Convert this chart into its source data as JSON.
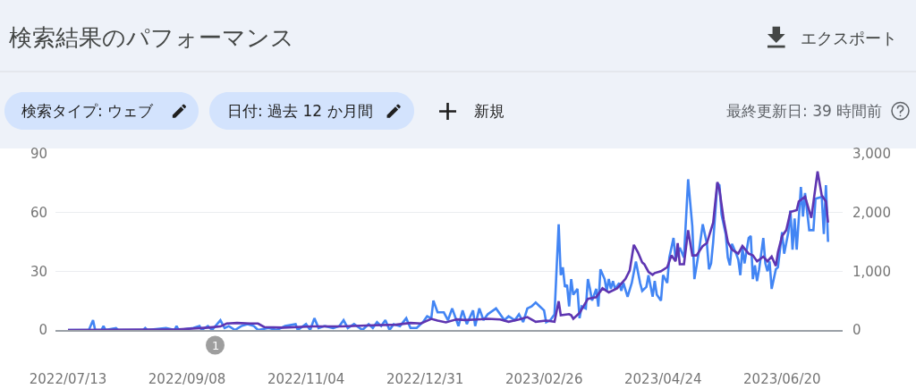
{
  "chart_data": {
    "type": "line",
    "title": "検索結果のパフォーマンス",
    "annotations": [
      "エクスポート",
      "検索タイプ: ウェブ",
      "日付: 過去 12 か月間",
      "新規",
      "最終更新日: 39 時間前",
      "1"
    ],
    "series": [
      {
        "color": "#5e35b1",
        "axis": "y2",
        "x": [
          "2022-07-13",
          "2022-09-04",
          "2022-09-18",
          "2022-09-24",
          "2022-09-27",
          "2022-10-02",
          "2022-10-08",
          "2022-10-12",
          "2022-10-15",
          "2022-10-24",
          "2022-11-07",
          "2022-11-21",
          "2022-12-06",
          "2022-12-17",
          "2022-12-24",
          "2022-12-29",
          "2023-01-03",
          "2023-01-06",
          "2023-01-10",
          "2023-01-15",
          "2023-01-19",
          "2023-01-25",
          "2023-01-30",
          "2023-02-05",
          "2023-02-09",
          "2023-02-14",
          "2023-02-18",
          "2023-02-22",
          "2023-02-27",
          "2023-03-03",
          "2023-03-05",
          "2023-03-06",
          "2023-03-10",
          "2023-03-11",
          "2023-03-12",
          "2023-03-15",
          "2023-03-19",
          "2023-03-23",
          "2023-03-26",
          "2023-03-29",
          "2023-04-02",
          "2023-04-06",
          "2023-04-08",
          "2023-04-10",
          "2023-04-12",
          "2023-04-14",
          "2023-04-15",
          "2023-04-17",
          "2023-04-19",
          "2023-04-20",
          "2023-04-23",
          "2023-04-26",
          "2023-04-28",
          "2023-04-30",
          "2023-05-01",
          "2023-05-02",
          "2023-05-04",
          "2023-05-06",
          "2023-05-08",
          "2023-05-10",
          "2023-05-13",
          "2023-05-15",
          "2023-05-18",
          "2023-05-20",
          "2023-05-21",
          "2023-05-23",
          "2023-05-25",
          "2023-05-27",
          "2023-05-30",
          "2023-06-01",
          "2023-06-04",
          "2023-06-06",
          "2023-06-08",
          "2023-06-11",
          "2023-06-13",
          "2023-06-15",
          "2023-06-17",
          "2023-06-18",
          "2023-06-20",
          "2023-06-22",
          "2023-06-24",
          "2023-06-27",
          "2023-06-28",
          "2023-07-01",
          "2023-07-04",
          "2023-07-07",
          "2023-07-09",
          "2023-07-11",
          "2023-07-12"
        ],
        "values": [
          0,
          10,
          40,
          60,
          110,
          120,
          110,
          110,
          50,
          40,
          60,
          60,
          80,
          90,
          120,
          110,
          190,
          160,
          130,
          180,
          170,
          180,
          190,
          180,
          140,
          180,
          220,
          140,
          160,
          140,
          490,
          250,
          270,
          250,
          190,
          290,
          530,
          560,
          710,
          640,
          710,
          870,
          1010,
          1450,
          1320,
          1150,
          1120,
          990,
          940,
          970,
          1000,
          1070,
          1270,
          1170,
          1480,
          1120,
          1120,
          1700,
          1270,
          1270,
          1430,
          1480,
          1830,
          2520,
          2390,
          1880,
          1500,
          1370,
          1300,
          1430,
          1300,
          1270,
          1170,
          1250,
          1170,
          1250,
          1090,
          1320,
          1600,
          1700,
          2010,
          2040,
          2190,
          2270,
          1910,
          2700,
          2290,
          2190,
          1830
        ]
      },
      {
        "color": "#4285f4",
        "x": [
          "2022-07-13",
          "2022-07-23",
          "2022-07-25",
          "2022-07-26",
          "2022-07-29",
          "2022-07-30",
          "2022-07-31",
          "2022-08-05",
          "2022-08-06",
          "2022-08-18",
          "2022-08-19",
          "2022-08-20",
          "2022-08-29",
          "2022-09-02",
          "2022-09-03",
          "2022-09-04",
          "2022-09-11",
          "2022-09-14",
          "2022-09-15",
          "2022-09-18",
          "2022-09-20",
          "2022-09-24",
          "2022-09-26",
          "2022-09-28",
          "2022-10-01",
          "2022-10-04",
          "2022-10-07",
          "2022-10-10",
          "2022-10-12",
          "2022-10-17",
          "2022-10-21",
          "2022-10-25",
          "2022-10-30",
          "2022-10-31",
          "2022-11-04",
          "2022-11-06",
          "2022-11-08",
          "2022-11-10",
          "2022-11-13",
          "2022-11-17",
          "2022-11-20",
          "2022-11-22",
          "2022-11-24",
          "2022-11-27",
          "2022-12-01",
          "2022-12-04",
          "2022-12-06",
          "2022-12-08",
          "2022-12-10",
          "2022-12-12",
          "2022-12-14",
          "2022-12-16",
          "2022-12-19",
          "2022-12-22",
          "2022-12-24",
          "2022-12-27",
          "2022-12-30",
          "2023-01-01",
          "2023-01-03",
          "2023-01-04",
          "2023-01-06",
          "2023-01-09",
          "2023-01-11",
          "2023-01-13",
          "2023-01-16",
          "2023-01-18",
          "2023-01-20",
          "2023-01-23",
          "2023-01-24",
          "2023-01-26",
          "2023-01-28",
          "2023-01-30",
          "2023-02-03",
          "2023-02-07",
          "2023-02-09",
          "2023-02-12",
          "2023-02-14",
          "2023-02-16",
          "2023-02-18",
          "2023-02-20",
          "2023-02-22",
          "2023-02-24",
          "2023-02-26",
          "2023-02-27",
          "2023-03-01",
          "2023-03-03",
          "2023-03-05",
          "2023-03-06",
          "2023-03-07",
          "2023-03-08",
          "2023-03-09",
          "2023-03-10",
          "2023-03-11",
          "2023-03-12",
          "2023-03-14",
          "2023-03-15",
          "2023-03-16",
          "2023-03-18",
          "2023-03-19",
          "2023-03-20",
          "2023-03-21",
          "2023-03-23",
          "2023-03-24",
          "2023-03-25",
          "2023-03-27",
          "2023-03-28",
          "2023-03-29",
          "2023-03-30",
          "2023-03-31",
          "2023-04-01",
          "2023-04-03",
          "2023-04-04",
          "2023-04-05",
          "2023-04-07",
          "2023-04-09",
          "2023-04-11",
          "2023-04-13",
          "2023-04-14",
          "2023-04-16",
          "2023-04-17",
          "2023-04-19",
          "2023-04-20",
          "2023-04-21",
          "2023-04-23",
          "2023-04-24",
          "2023-04-26",
          "2023-04-27",
          "2023-04-29",
          "2023-04-30",
          "2023-05-02",
          "2023-05-04",
          "2023-05-06",
          "2023-05-08",
          "2023-05-09",
          "2023-05-11",
          "2023-05-13",
          "2023-05-15",
          "2023-05-16",
          "2023-05-17",
          "2023-05-18",
          "2023-05-20",
          "2023-05-21",
          "2023-05-22",
          "2023-05-24",
          "2023-05-25",
          "2023-05-26",
          "2023-05-27",
          "2023-05-29",
          "2023-05-30",
          "2023-05-31",
          "2023-06-01",
          "2023-06-02",
          "2023-06-04",
          "2023-06-05",
          "2023-06-06",
          "2023-06-07",
          "2023-06-08",
          "2023-06-09",
          "2023-06-11",
          "2023-06-12",
          "2023-06-13",
          "2023-06-14",
          "2023-06-15",
          "2023-06-17",
          "2023-06-18",
          "2023-06-20",
          "2023-06-21",
          "2023-06-23",
          "2023-06-24",
          "2023-06-25",
          "2023-06-26",
          "2023-06-27",
          "2023-06-29",
          "2023-06-30",
          "2023-07-01",
          "2023-07-03",
          "2023-07-05",
          "2023-07-06",
          "2023-07-09",
          "2023-07-10",
          "2023-07-11",
          "2023-07-12"
        ],
        "values": [
          0,
          0,
          5,
          0,
          0,
          2,
          0,
          1,
          0,
          0,
          1,
          0,
          1,
          0,
          2,
          0,
          1,
          2,
          0,
          2,
          0,
          5,
          1,
          2,
          0,
          2,
          3,
          2,
          0,
          1,
          0,
          2,
          3,
          0,
          3,
          0,
          6,
          1,
          2,
          1,
          2,
          5,
          1,
          3,
          0,
          3,
          1,
          4,
          2,
          5,
          0,
          3,
          2,
          6,
          1,
          1,
          4,
          7,
          6,
          15,
          9,
          9,
          5,
          11,
          2,
          10,
          3,
          10,
          2,
          11,
          5,
          8,
          11,
          5,
          7,
          5,
          8,
          4,
          11,
          12,
          14,
          12,
          10,
          4,
          5,
          8,
          54,
          28,
          32,
          22,
          23,
          12,
          26,
          18,
          21,
          6,
          12,
          11,
          26,
          21,
          15,
          21,
          12,
          31,
          26,
          20,
          26,
          21,
          25,
          21,
          24,
          20,
          24,
          17,
          24,
          35,
          24,
          20,
          22,
          28,
          17,
          25,
          18,
          15,
          28,
          24,
          37,
          47,
          36,
          42,
          37,
          77,
          53,
          26,
          39,
          54,
          44,
          31,
          34,
          45,
          75,
          74,
          59,
          49,
          37,
          33,
          44,
          39,
          36,
          28,
          42,
          34,
          47,
          48,
          26,
          33,
          25,
          31,
          47,
          34,
          30,
          35,
          21,
          31,
          32,
          50,
          39,
          50,
          61,
          41,
          57,
          41,
          73,
          58,
          70,
          51,
          51,
          67,
          68,
          49,
          74,
          45
        ]
      }
    ],
    "xlim": [
      "2022-07-07",
      "2023-07-19"
    ],
    "xticks": [
      {
        "value": "2022-07-13",
        "label": "2022/07/13"
      },
      {
        "value": "2022-09-08",
        "label": "2022/09/08"
      },
      {
        "value": "2022-11-04",
        "label": "2022/11/04"
      },
      {
        "value": "2022-12-31",
        "label": "2022/12/31"
      },
      {
        "value": "2023-02-26",
        "label": "2023/02/26"
      },
      {
        "value": "2023-04-24",
        "label": "2023/04/24"
      },
      {
        "value": "2023-06-20",
        "label": "2023/06/20"
      }
    ],
    "ylim": [
      0,
      90
    ],
    "yticks": [
      0,
      30,
      60,
      90
    ],
    "y2lim": [
      0,
      3000
    ],
    "y2ticks": [
      0,
      {
        "value": 1000,
        "label": "1,000"
      },
      {
        "value": 2000,
        "label": "2,000"
      },
      {
        "value": 3000,
        "label": "3,000"
      }
    ],
    "grid": "y"
  }
}
